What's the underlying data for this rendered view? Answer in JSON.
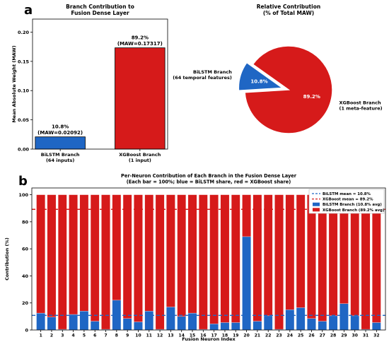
{
  "panel_labels": [
    "a",
    "b"
  ],
  "chart_data": [
    {
      "type": "bar",
      "title": "Branch Contribution to\nFusion Dense Layer",
      "xlabel": "",
      "ylabel": "Mean Absolute Weight (MAW)",
      "ylim": [
        0,
        0.2223
      ],
      "yticks": [
        "0.00",
        "0.05",
        "0.10",
        "0.15",
        "0.20"
      ],
      "ytick_values": [
        0,
        0.05,
        0.1,
        0.15,
        0.2
      ],
      "categories": [
        "BiLSTM Branch\n(64 inputs)",
        "XGBoost Branch\n(1 input)"
      ],
      "values": [
        0.02092,
        0.17317
      ],
      "colors": [
        "#1f66c4",
        "#d61a1a"
      ],
      "bar_labels": [
        "10.8%\n(MAW=0.02092)",
        "89.2%\n(MAW=0.17317)"
      ]
    },
    {
      "type": "pie",
      "title": "Relative Contribution\n(% of Total MAW)",
      "slices": [
        {
          "label": "BiLSTM Branch\n(64 temporal features)",
          "value": 10.8,
          "pct_label": "10.8%",
          "color": "#1f66c4",
          "exploded": true
        },
        {
          "label": "XGBoost Branch\n(1 meta-feature)",
          "value": 89.2,
          "pct_label": "89.2%",
          "color": "#d61a1a",
          "exploded": false
        }
      ]
    },
    {
      "type": "bar",
      "stacked": true,
      "title": "Per-Neuron Contribution of Each Branch in the Fusion Dense Layer\n(Each bar = 100%; blue = BiLSTM share, red = XGBoost share)",
      "xlabel": "Fusion Neuron Index",
      "ylabel": "Contribution (%)",
      "ylim": [
        0,
        105
      ],
      "yticks": [
        "0",
        "20",
        "40",
        "60",
        "80",
        "100"
      ],
      "ytick_values": [
        0,
        20,
        40,
        60,
        80,
        100
      ],
      "categories": [
        "1",
        "2",
        "3",
        "4",
        "5",
        "6",
        "7",
        "8",
        "9",
        "10",
        "11",
        "12",
        "13",
        "14",
        "15",
        "16",
        "17",
        "18",
        "19",
        "20",
        "21",
        "22",
        "23",
        "24",
        "25",
        "26",
        "27",
        "28",
        "29",
        "30",
        "31",
        "32"
      ],
      "series": [
        {
          "name": "BiLSTM Branch (10.8% avg)",
          "color": "#1f66c4",
          "values": [
            12.5,
            9.5,
            0.5,
            11.5,
            14,
            6.5,
            0.5,
            22,
            8.5,
            6,
            14,
            0.5,
            17,
            10,
            12.5,
            0.5,
            4.5,
            5.5,
            5.5,
            69,
            6.5,
            10.5,
            0.5,
            15,
            16.5,
            8.5,
            6.5,
            10.5,
            19.5,
            10.5,
            0.5,
            5.5
          ]
        },
        {
          "name": "XGBoost Branch (89.2% avg)",
          "color": "#d61a1a",
          "values": [
            87.5,
            90.5,
            99.5,
            88.5,
            86,
            93.5,
            99.5,
            78,
            91.5,
            94,
            86,
            99.5,
            83,
            90,
            87.5,
            99.5,
            95.5,
            94.5,
            94.5,
            31,
            93.5,
            89.5,
            99.5,
            85,
            83.5,
            91.5,
            93.5,
            89.5,
            80.5,
            89.5,
            99.5,
            94.5
          ]
        }
      ],
      "reference_lines": [
        {
          "name": "BiLSTM mean = 10.8%",
          "value": 10.8,
          "color": "#1f66c4"
        },
        {
          "name": "XGBoost mean = 89.2%",
          "value": 89.2,
          "color": "#d61a1a"
        }
      ],
      "legend": "top-right"
    }
  ]
}
